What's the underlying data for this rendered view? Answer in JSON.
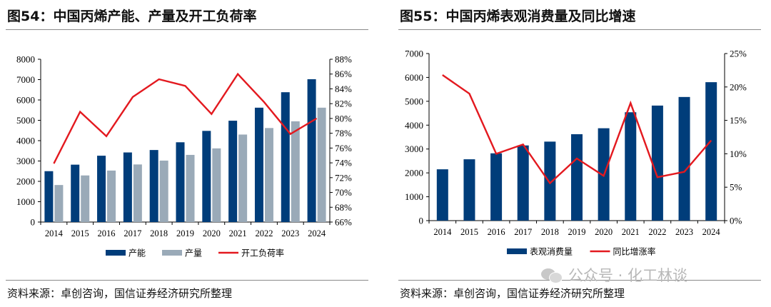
{
  "panels": {
    "left": {
      "title": "图54：中国丙烯产能、产量及开工负荷率",
      "source": "资料来源：卓创咨询，国信证券经济研究所整理"
    },
    "right": {
      "title": "图55：中国丙烯表观消费量及同比增速",
      "source": "资料来源：卓创咨询，国信证券经济研究所整理"
    }
  },
  "watermark": {
    "text": "公众号 · 化工林谈"
  },
  "chart_data": [
    {
      "type": "bar",
      "categories": [
        "2014",
        "2015",
        "2016",
        "2017",
        "2018",
        "2019",
        "2020",
        "2021",
        "2022",
        "2023",
        "2024"
      ],
      "ylim": [
        0,
        8000
      ],
      "y_ticks": [
        "0",
        "1000",
        "2000",
        "3000",
        "4000",
        "5000",
        "6000",
        "7000",
        "8000"
      ],
      "y2lim": [
        66,
        88
      ],
      "y2_ticks": [
        "66%",
        "68%",
        "70%",
        "72%",
        "74%",
        "76%",
        "78%",
        "80%",
        "82%",
        "84%",
        "86%",
        "88%"
      ],
      "legend_position": "bottom",
      "grid": false,
      "series": [
        {
          "name": "产能",
          "kind": "bar",
          "axis": "left",
          "color": "#003d7a",
          "values": [
            2500,
            2820,
            3260,
            3420,
            3540,
            3920,
            4480,
            4980,
            5620,
            6380,
            7020
          ]
        },
        {
          "name": "产量",
          "kind": "bar",
          "axis": "left",
          "color": "#9aaab8",
          "values": [
            1820,
            2290,
            2530,
            2830,
            3020,
            3300,
            3620,
            4300,
            4620,
            4950,
            5620
          ]
        },
        {
          "name": "开工负荷率",
          "kind": "line",
          "axis": "right",
          "color": "#e3191f",
          "values": [
            73.9,
            80.9,
            77.6,
            82.9,
            85.3,
            84.4,
            80.6,
            86.0,
            82.2,
            77.9,
            80.0
          ]
        }
      ]
    },
    {
      "type": "bar",
      "categories": [
        "2014",
        "2015",
        "2016",
        "2017",
        "2018",
        "2019",
        "2020",
        "2021",
        "2022",
        "2023",
        "2024"
      ],
      "ylim": [
        0,
        7000
      ],
      "y_ticks": [
        "0",
        "1000",
        "2000",
        "3000",
        "4000",
        "5000",
        "6000",
        "7000"
      ],
      "y2lim": [
        0,
        25
      ],
      "y2_ticks": [
        "0%",
        "5%",
        "10%",
        "15%",
        "20%",
        "25%"
      ],
      "legend_position": "bottom",
      "grid": false,
      "series": [
        {
          "name": "表观消费量",
          "kind": "bar",
          "axis": "left",
          "color": "#003d7a",
          "values": [
            2150,
            2570,
            2820,
            3150,
            3310,
            3620,
            3870,
            4540,
            4820,
            5180,
            5800
          ]
        },
        {
          "name": "同比增涨率",
          "kind": "line",
          "axis": "right",
          "color": "#e3191f",
          "values": [
            21.8,
            19.0,
            10.0,
            11.4,
            5.6,
            9.3,
            6.7,
            17.6,
            6.5,
            7.3,
            12.0
          ]
        }
      ]
    }
  ]
}
